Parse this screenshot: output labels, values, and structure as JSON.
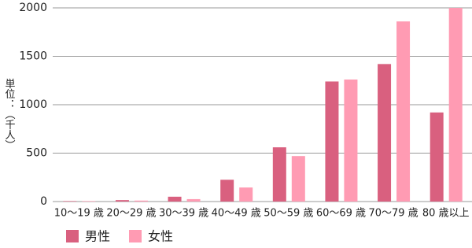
{
  "chart_data": {
    "type": "bar",
    "y_label": "単位：（千人）",
    "categories": [
      "10〜19 歳",
      "20〜29 歳",
      "30〜39 歳",
      "40〜49 歳",
      "50〜59 歳",
      "60〜69 歳",
      "70〜79 歳",
      "80 歳以上"
    ],
    "series": [
      {
        "name": "男性",
        "color": "#d9607f",
        "values": [
          5,
          15,
          50,
          225,
          560,
          1240,
          1420,
          920
        ]
      },
      {
        "name": "女性",
        "color": "#ff9bb3",
        "values": [
          5,
          10,
          25,
          145,
          470,
          1260,
          1860,
          2000
        ]
      }
    ],
    "ylim": [
      0,
      2000
    ],
    "yticks": [
      0,
      500,
      1000,
      1500,
      2000
    ],
    "grid": true,
    "legend": "bottom-left"
  }
}
